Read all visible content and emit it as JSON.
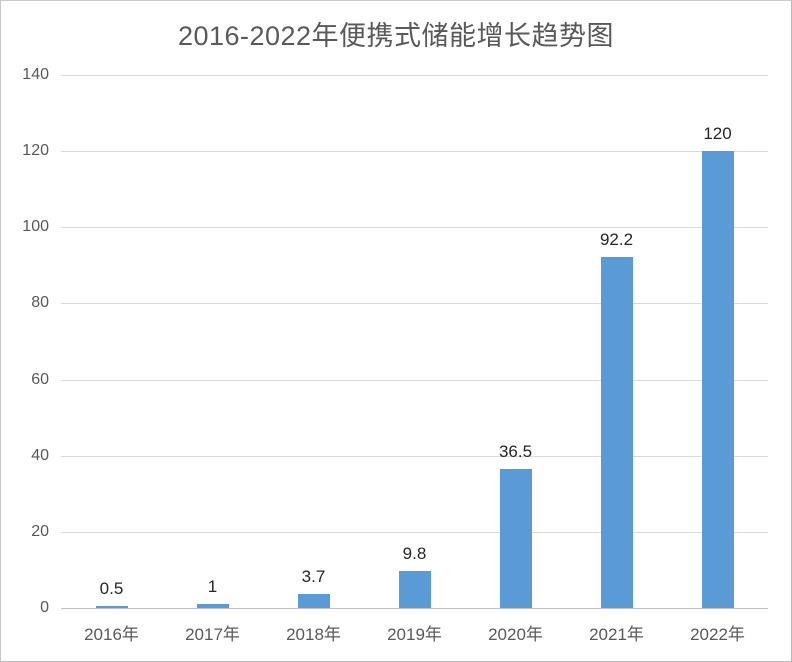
{
  "title": "2016-2022年便携式储能增长趋势图",
  "colors": {
    "bar": "#5B9BD5",
    "gridline": "#D9D9D9",
    "axis_line": "#C3C3C3",
    "axis_text": "#595959",
    "title_text": "#595959",
    "data_label_text": "#262626",
    "background": "#FFFFFF",
    "border": "#C9C9C9"
  },
  "chart_data": {
    "type": "bar",
    "title": "2016-2022年便携式储能增长趋势图",
    "categories": [
      "2016年",
      "2017年",
      "2018年",
      "2019年",
      "2020年",
      "2021年",
      "2022年"
    ],
    "values": [
      0.5,
      1,
      3.7,
      9.8,
      36.5,
      92.2,
      120
    ],
    "data_labels": [
      "0.5",
      "1",
      "3.7",
      "9.8",
      "36.5",
      "92.2",
      "120"
    ],
    "xlabel": "",
    "ylabel": "",
    "ylim": [
      0,
      140
    ],
    "yticks": [
      0,
      20,
      40,
      60,
      80,
      100,
      120,
      140
    ],
    "grid": true,
    "legend": "none"
  }
}
